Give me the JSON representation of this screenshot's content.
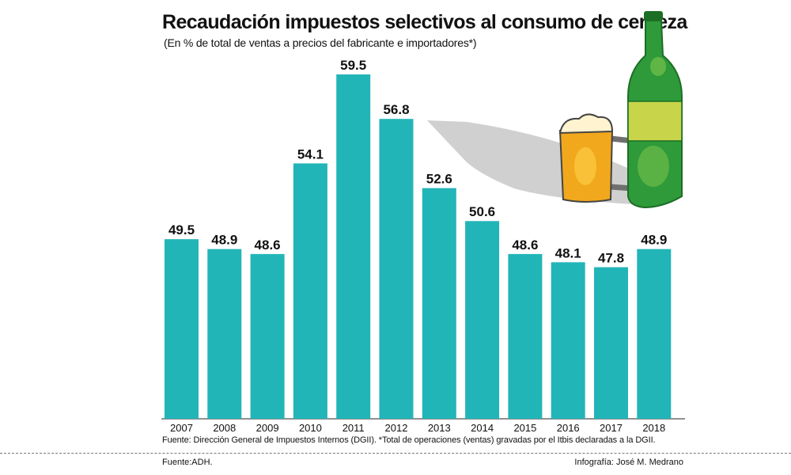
{
  "header": {
    "title": "Recaudación impuestos selectivos al consumo de cerveza",
    "subtitle": "(En % de total de ventas a precios del fabricante e importadores*)"
  },
  "footer": {
    "note": "Fuente: Dirección General de Impuestos Internos (DGII). *Total de operaciones (ventas) gravadas por el Itbis declaradas a la DGII.",
    "source": "Fuente:ADH.",
    "credit": "Infografía: José M. Medrano"
  },
  "colors": {
    "bar": "#22b5b8",
    "bottle": "#2e9a3a",
    "bottle_dark": "#1c6e25",
    "beer": "#f2a81c",
    "foam": "#fff4cf",
    "shadow": "#c8c8c8",
    "label_band": "#c8d44a"
  },
  "icons": [
    "beer-bottle-icon",
    "beer-mug-icon"
  ],
  "chart_data": {
    "type": "bar",
    "title": "Recaudación impuestos selectivos al consumo de cerveza",
    "subtitle": "(En % de total de ventas a precios del fabricante e importadores*)",
    "xlabel": "",
    "ylabel": "",
    "categories": [
      "2007",
      "2008",
      "2009",
      "2010",
      "2011",
      "2012",
      "2013",
      "2014",
      "2015",
      "2016",
      "2017",
      "2018"
    ],
    "values": [
      49.5,
      48.9,
      48.6,
      54.1,
      59.5,
      56.8,
      52.6,
      50.6,
      48.6,
      48.1,
      47.8,
      48.9
    ],
    "data_labels": [
      "49.5",
      "48.9",
      "48.6",
      "54.1",
      "59.5",
      "56.8",
      "52.6",
      "50.6",
      "48.6",
      "48.1",
      "47.8",
      "48.9"
    ],
    "ylim": [
      38.6,
      59.5
    ],
    "grid": false,
    "legend": "none"
  }
}
